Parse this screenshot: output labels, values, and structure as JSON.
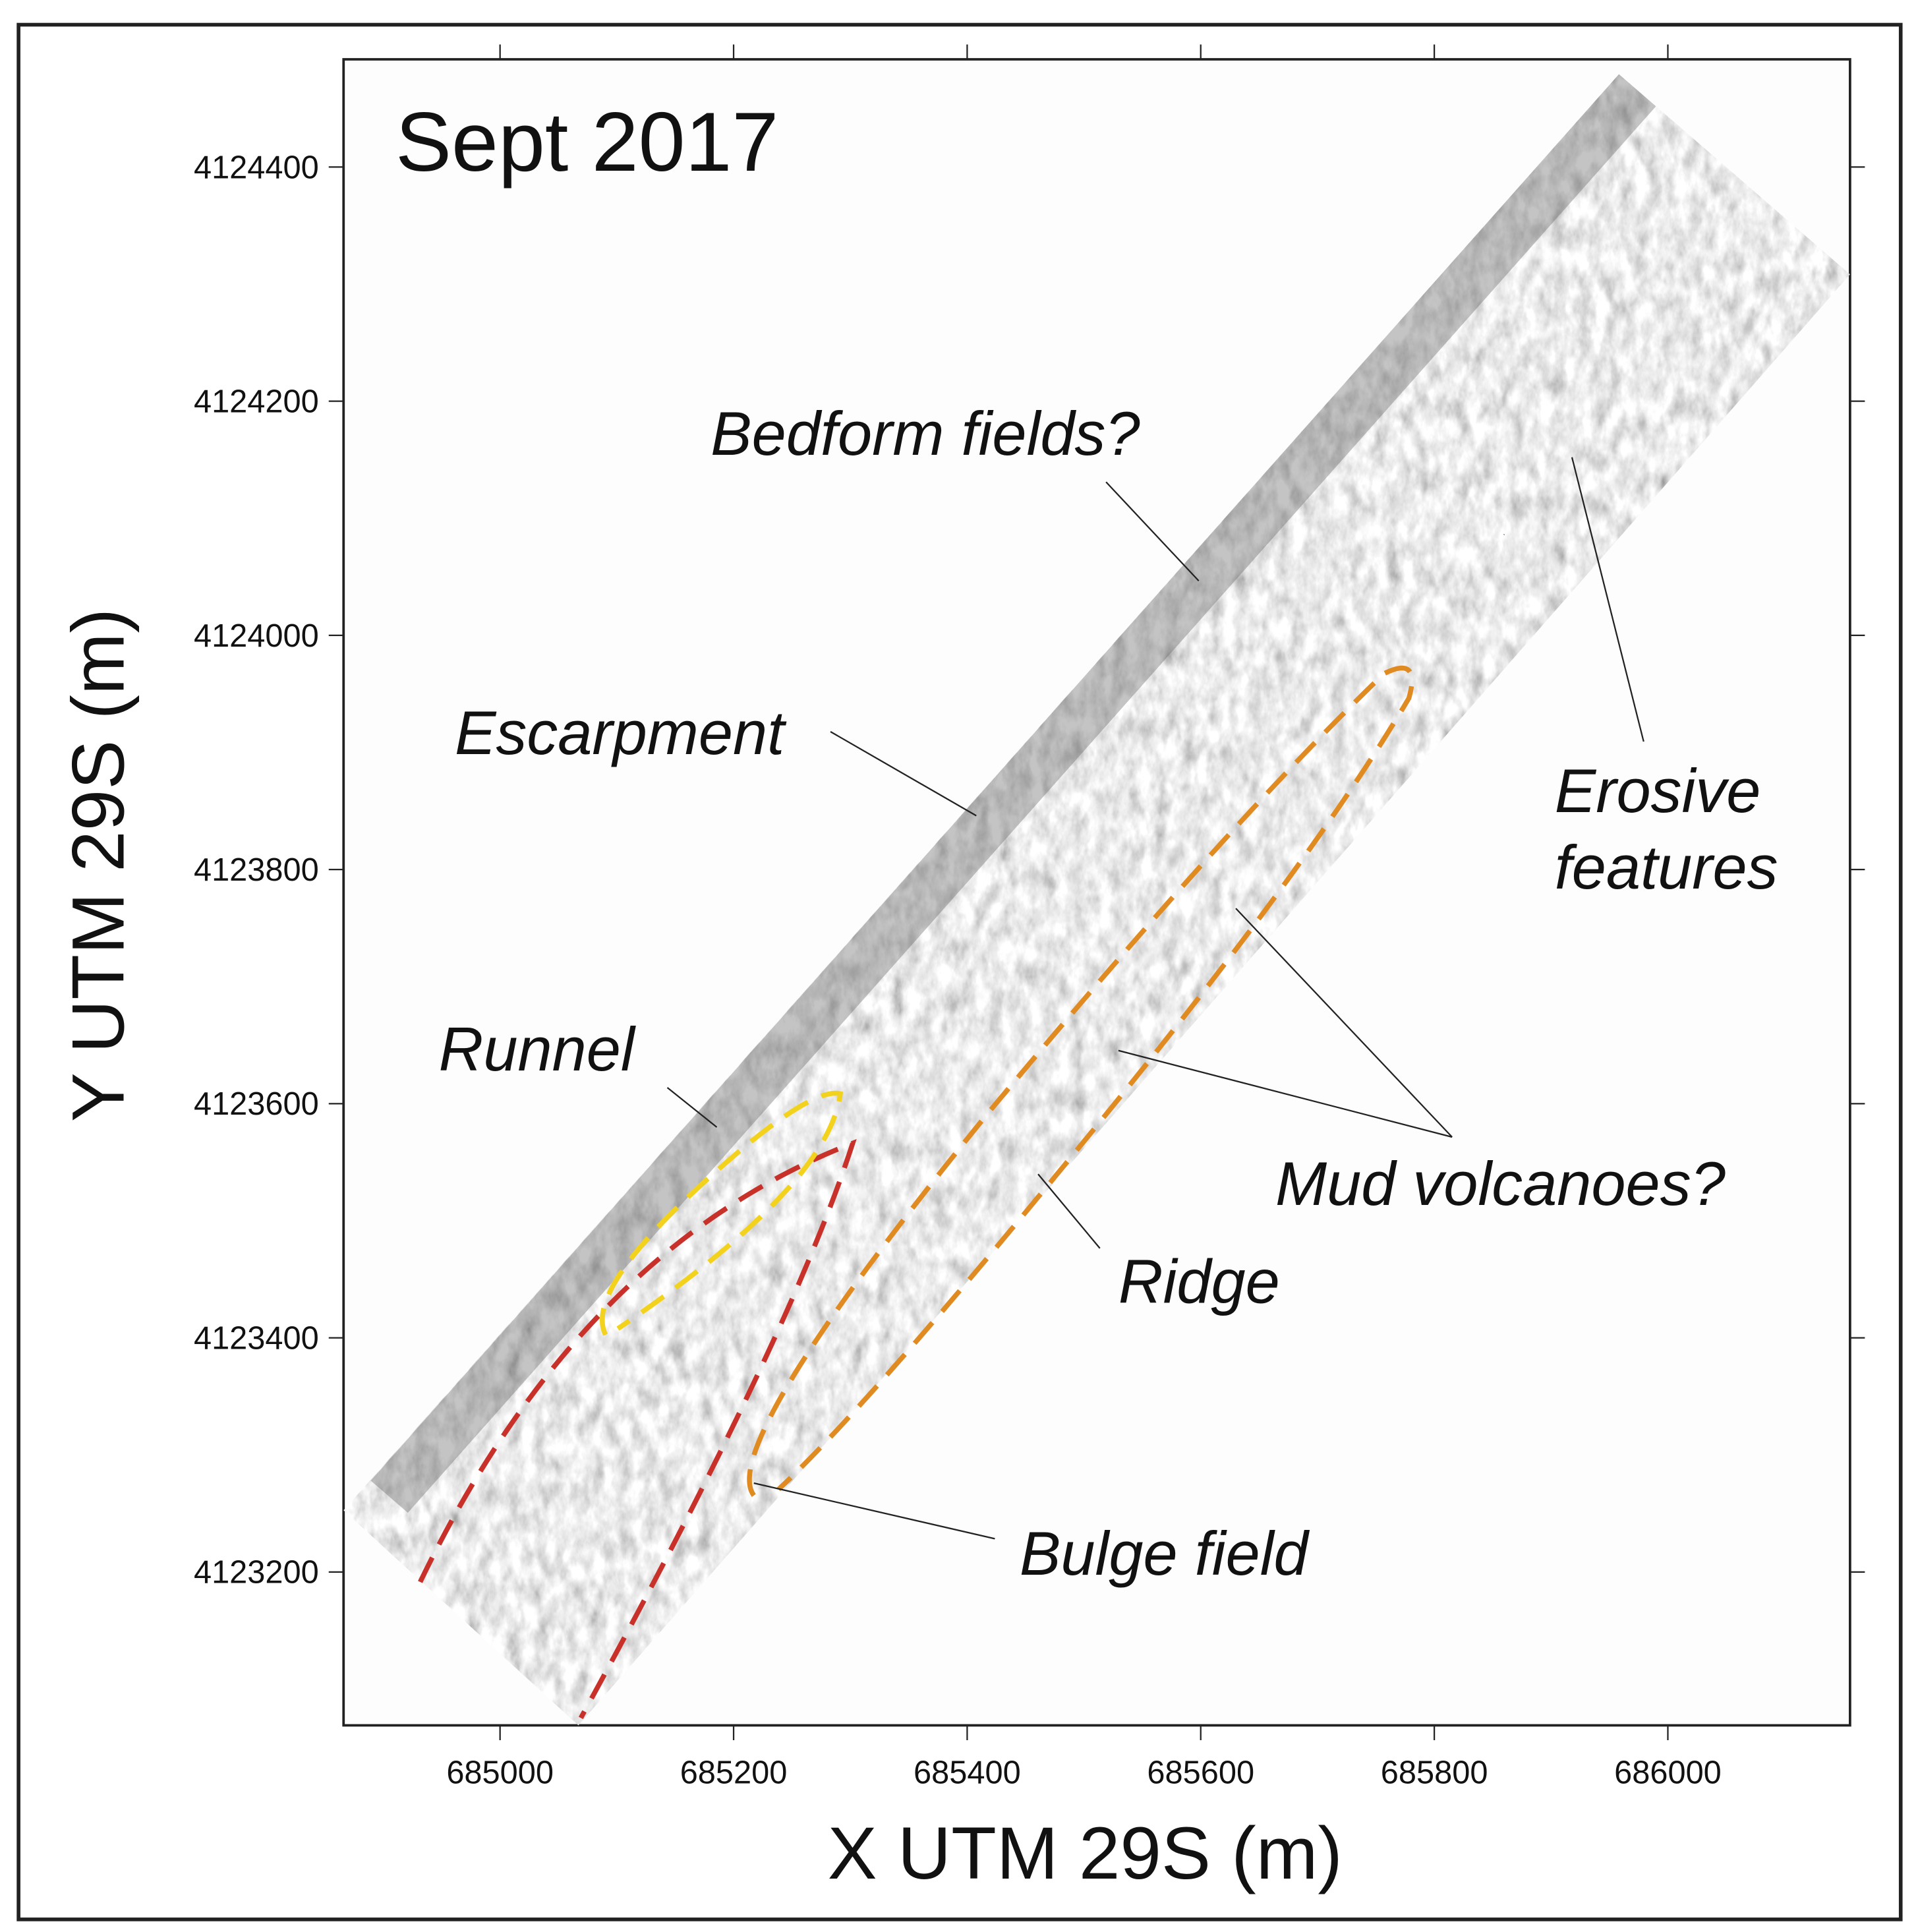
{
  "chart_data": {
    "type": "map",
    "title": "Sept 2017",
    "x_label": "X UTM 29S (m)",
    "y_label": "Y UTM 29S (m)",
    "xlim": [
      684866,
      686156
    ],
    "ylim": [
      4123069,
      4124492
    ],
    "xticks": [
      685000,
      685200,
      685400,
      685600,
      685800,
      686000
    ],
    "yticks": [
      4123200,
      4123400,
      4123600,
      4123800,
      4124000,
      4124200,
      4124400
    ],
    "annotations": [
      "Bedform fields?",
      "Escarpment",
      [
        "Erosive",
        "features"
      ],
      "Runnel",
      "Mud volcanoes?",
      "Ridge",
      "Bulge field"
    ]
  }
}
